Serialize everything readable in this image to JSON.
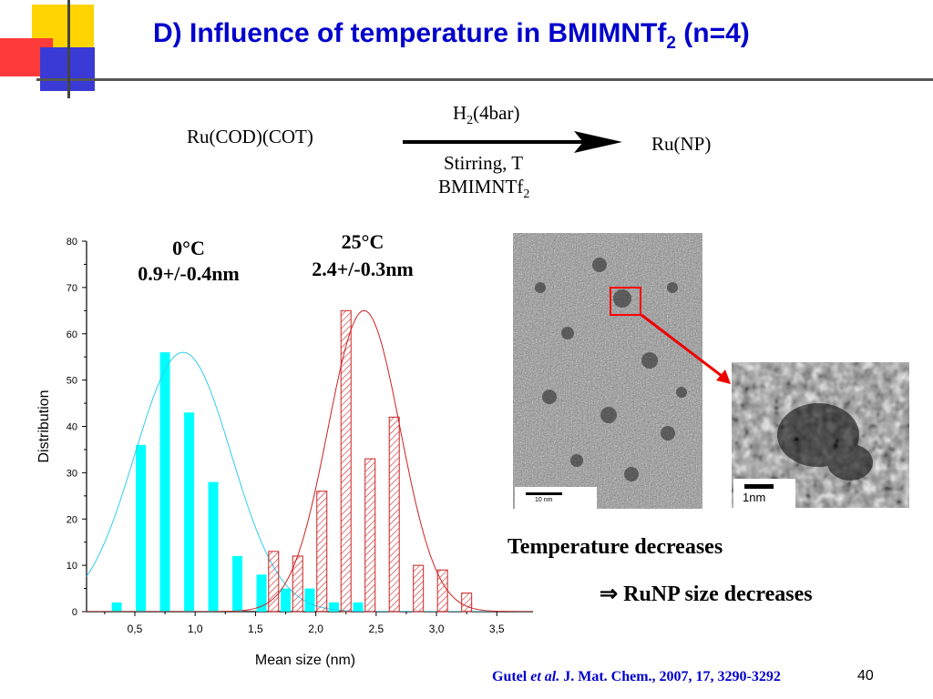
{
  "slide": {
    "title_main": "D) Influence of temperature in BMIMNTf",
    "title_sub": "2",
    "title_end": " (n=4)",
    "page_number": "40"
  },
  "reaction": {
    "reactant": "Ru(COD)(COT)",
    "product": "Ru(NP)",
    "above_arrow_main": "H",
    "above_arrow_sub": "2",
    "above_arrow_end": "(4bar)",
    "below_arrow_line1": "Stirring, T",
    "below_arrow_line2_main": "BMIMNTf",
    "below_arrow_line2_sub": "2"
  },
  "chart_data": {
    "type": "bar",
    "xlabel": "Mean size (nm)",
    "ylabel": "Distribution",
    "xlim": [
      0.1,
      3.8
    ],
    "ylim": [
      0,
      80
    ],
    "x_ticks": [
      "0,5",
      "1,0",
      "1,5",
      "2,0",
      "2,5",
      "3,0",
      "3,5"
    ],
    "x_tick_values": [
      0.5,
      1.0,
      1.5,
      2.0,
      2.5,
      3.0,
      3.5
    ],
    "y_ticks": [
      0,
      10,
      20,
      30,
      40,
      50,
      60,
      70,
      80
    ],
    "series": [
      {
        "name": "0°C",
        "color": "#00ffff",
        "fill": "solid",
        "x": [
          0.35,
          0.55,
          0.75,
          0.95,
          1.15,
          1.35,
          1.55,
          1.75,
          1.95,
          2.15,
          2.35
        ],
        "values": [
          2,
          36,
          56,
          43,
          28,
          12,
          8,
          5,
          5,
          2,
          2
        ],
        "fit": {
          "mean": 0.9,
          "sigma": 0.4,
          "peak": 56,
          "color": "#33ccee"
        }
      },
      {
        "name": "25°C",
        "color": "#cc2222",
        "fill": "hatched",
        "x": [
          1.65,
          1.85,
          2.05,
          2.25,
          2.45,
          2.65,
          2.85,
          3.05,
          3.25
        ],
        "values": [
          13,
          12,
          26,
          65,
          33,
          42,
          10,
          9,
          4
        ],
        "fit": {
          "mean": 2.4,
          "sigma": 0.3,
          "peak": 65,
          "color": "#cc2222"
        }
      }
    ],
    "annotations": [
      {
        "line1": "0°C",
        "line2": "0.9+/-0.4nm"
      },
      {
        "line1": "25°C",
        "line2": "2.4+/-0.3nm"
      }
    ]
  },
  "images": {
    "tem_scale_large": "10 nm",
    "tem_scale_zoom": "1nm",
    "highlight_color": "#ff0000"
  },
  "conclusion": {
    "line1": "Temperature decreases",
    "line2_symbol": "⇒",
    "line2_text": " RuNP size decreases"
  },
  "citation": {
    "authors": "Gutel ",
    "etal": "et al.",
    "journal": " J. Mat. Chem., 2007, 17, 3290-3292"
  }
}
